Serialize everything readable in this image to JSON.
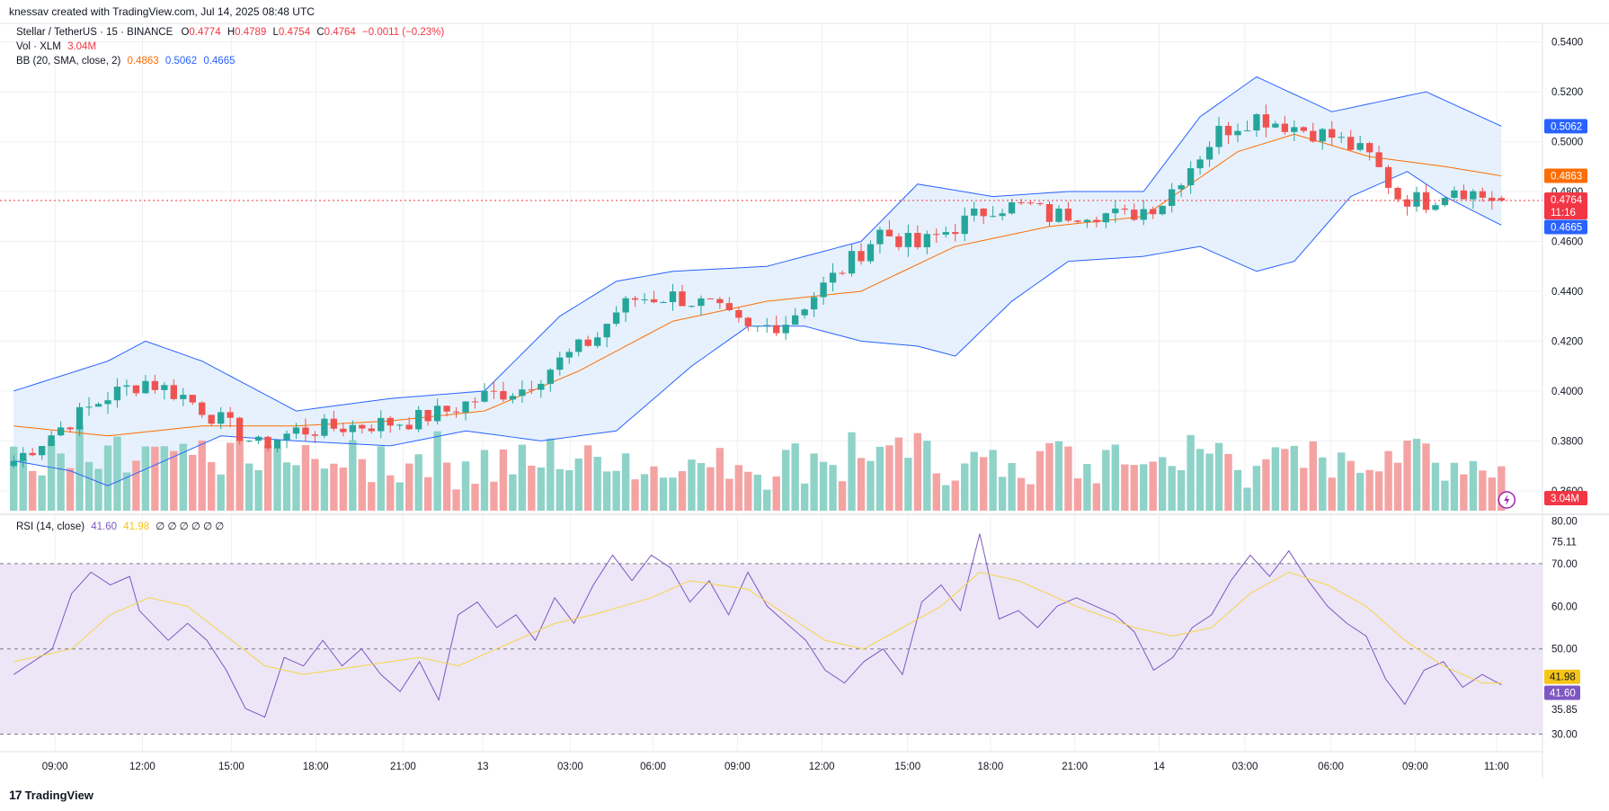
{
  "attribution": "knessav created with TradingView.com, Jul 14, 2025 08:48 UTC",
  "footer_brand": "TradingView",
  "legend": {
    "symbol": "Stellar / TetherUS · 15 · BINANCE",
    "o_label": "O",
    "o_value": "0.4774",
    "h_label": "H",
    "h_value": "0.4789",
    "l_label": "L",
    "l_value": "0.4754",
    "c_label": "C",
    "c_value": "0.4764",
    "change": "−0.0011 (−0.23%)",
    "vol_label": "Vol · XLM",
    "vol_value": "3.04M",
    "bb_label": "BB (20, SMA, close, 2)",
    "bb_basis": "0.4863",
    "bb_upper": "0.5062",
    "bb_lower": "0.4665",
    "rsi_label": "RSI (14, close)",
    "rsi_value": "41.60",
    "rsi_ma": "41.98",
    "rsi_extra": "∅ ∅ ∅ ∅ ∅ ∅"
  },
  "price_axis": {
    "ticks": [
      "0.5400",
      "0.5200",
      "0.5000",
      "0.4800",
      "0.4600",
      "0.4400",
      "0.4200",
      "0.4000",
      "0.3800",
      "0.3600"
    ],
    "tags": [
      {
        "text": "0.5062",
        "color": "#2962ff"
      },
      {
        "text": "0.4863",
        "color": "#ff6d00"
      },
      {
        "text": "0.4764",
        "color": "#f23645"
      },
      {
        "text": "11:16",
        "color": "#f23645"
      },
      {
        "text": "0.4665",
        "color": "#2962ff"
      },
      {
        "text": "3.04M",
        "color": "#f23645"
      }
    ]
  },
  "rsi_axis": {
    "ticks": [
      "80.00",
      "75.11",
      "70.00",
      "60.00",
      "50.00",
      "40.00",
      "35.85",
      "30.00"
    ],
    "tags": [
      {
        "text": "41.98",
        "color": "#f5c518"
      },
      {
        "text": "41.60",
        "color": "#7e57c2"
      }
    ]
  },
  "time_axis": [
    "09:00",
    "12:00",
    "15:00",
    "18:00",
    "21:00",
    "13",
    "03:00",
    "06:00",
    "09:00",
    "12:00",
    "15:00",
    "18:00",
    "21:00",
    "14",
    "03:00",
    "06:00",
    "09:00",
    "11:00"
  ],
  "colors": {
    "up": "#26a69a",
    "down": "#ef5350",
    "vol_up": "#8fd2c8",
    "vol_down": "#f4a3a3",
    "bb_basis": "#ff6d00",
    "bb_band": "#2962ff",
    "bb_fill": "#e3effd",
    "rsi_line": "#7e57c2",
    "rsi_ma": "#f5d547",
    "rsi_fill": "#ede6f7",
    "grid": "#eef0f3"
  },
  "chart_data": {
    "type": "candlestick",
    "symbol": "Stellar / TetherUS",
    "interval": "15",
    "exchange": "BINANCE",
    "ylim": [
      0.352,
      0.546
    ],
    "last": {
      "open": 0.4774,
      "high": 0.4789,
      "low": 0.4754,
      "close": 0.4764
    },
    "close_path": [
      [
        0,
        0.372
      ],
      [
        6,
        0.388
      ],
      [
        10,
        0.398
      ],
      [
        14,
        0.404
      ],
      [
        18,
        0.398
      ],
      [
        22,
        0.388
      ],
      [
        26,
        0.378
      ],
      [
        30,
        0.384
      ],
      [
        36,
        0.386
      ],
      [
        42,
        0.388
      ],
      [
        46,
        0.392
      ],
      [
        50,
        0.398
      ],
      [
        54,
        0.401
      ],
      [
        58,
        0.412
      ],
      [
        62,
        0.422
      ],
      [
        64,
        0.432
      ],
      [
        66,
        0.437
      ],
      [
        70,
        0.438
      ],
      [
        74,
        0.434
      ],
      [
        78,
        0.424
      ],
      [
        82,
        0.428
      ],
      [
        86,
        0.442
      ],
      [
        90,
        0.456
      ],
      [
        92,
        0.464
      ],
      [
        96,
        0.458
      ],
      [
        100,
        0.466
      ],
      [
        104,
        0.474
      ],
      [
        108,
        0.474
      ],
      [
        110,
        0.47
      ],
      [
        114,
        0.472
      ],
      [
        118,
        0.47
      ],
      [
        122,
        0.476
      ],
      [
        124,
        0.486
      ],
      [
        128,
        0.504
      ],
      [
        132,
        0.51
      ],
      [
        136,
        0.506
      ],
      [
        140,
        0.502
      ],
      [
        144,
        0.494
      ],
      [
        147,
        0.478
      ],
      [
        150,
        0.476
      ],
      [
        153,
        0.482
      ],
      [
        156,
        0.478
      ],
      [
        158,
        0.4764
      ]
    ],
    "volume_axis_label": "3.04M",
    "bb_basis_path": [
      [
        0,
        0.386
      ],
      [
        10,
        0.382
      ],
      [
        20,
        0.386
      ],
      [
        30,
        0.386
      ],
      [
        40,
        0.388
      ],
      [
        50,
        0.392
      ],
      [
        60,
        0.408
      ],
      [
        70,
        0.428
      ],
      [
        80,
        0.436
      ],
      [
        90,
        0.44
      ],
      [
        100,
        0.458
      ],
      [
        110,
        0.466
      ],
      [
        120,
        0.47
      ],
      [
        130,
        0.496
      ],
      [
        136,
        0.503
      ],
      [
        144,
        0.494
      ],
      [
        152,
        0.49
      ],
      [
        158,
        0.4863
      ]
    ],
    "bb_upper_path": [
      [
        0,
        0.4
      ],
      [
        10,
        0.412
      ],
      [
        14,
        0.42
      ],
      [
        20,
        0.412
      ],
      [
        30,
        0.392
      ],
      [
        40,
        0.397
      ],
      [
        50,
        0.4
      ],
      [
        58,
        0.43
      ],
      [
        64,
        0.444
      ],
      [
        70,
        0.448
      ],
      [
        80,
        0.45
      ],
      [
        90,
        0.46
      ],
      [
        96,
        0.483
      ],
      [
        104,
        0.478
      ],
      [
        112,
        0.48
      ],
      [
        120,
        0.48
      ],
      [
        126,
        0.51
      ],
      [
        132,
        0.526
      ],
      [
        140,
        0.512
      ],
      [
        150,
        0.52
      ],
      [
        158,
        0.5062
      ]
    ],
    "bb_lower_path": [
      [
        0,
        0.372
      ],
      [
        6,
        0.368
      ],
      [
        10,
        0.362
      ],
      [
        16,
        0.372
      ],
      [
        22,
        0.382
      ],
      [
        30,
        0.38
      ],
      [
        40,
        0.378
      ],
      [
        48,
        0.384
      ],
      [
        56,
        0.38
      ],
      [
        64,
        0.384
      ],
      [
        72,
        0.41
      ],
      [
        78,
        0.426
      ],
      [
        84,
        0.426
      ],
      [
        90,
        0.42
      ],
      [
        96,
        0.418
      ],
      [
        100,
        0.414
      ],
      [
        106,
        0.436
      ],
      [
        112,
        0.452
      ],
      [
        120,
        0.454
      ],
      [
        126,
        0.458
      ],
      [
        132,
        0.448
      ],
      [
        136,
        0.452
      ],
      [
        142,
        0.478
      ],
      [
        148,
        0.488
      ],
      [
        152,
        0.478
      ],
      [
        158,
        0.4665
      ]
    ],
    "rsi": {
      "ylim": [
        28,
        82
      ],
      "bands": [
        30,
        50,
        70
      ],
      "value": 41.6,
      "ma": 41.98,
      "high_tick": 75.11,
      "low_tick": 35.85,
      "line_path": [
        [
          0,
          44
        ],
        [
          4,
          50
        ],
        [
          6,
          63
        ],
        [
          8,
          68
        ],
        [
          10,
          65
        ],
        [
          12,
          67
        ],
        [
          13,
          59
        ],
        [
          16,
          52
        ],
        [
          18,
          56
        ],
        [
          20,
          52
        ],
        [
          22,
          45
        ],
        [
          24,
          36
        ],
        [
          26,
          34
        ],
        [
          28,
          48
        ],
        [
          30,
          46
        ],
        [
          32,
          52
        ],
        [
          34,
          46
        ],
        [
          36,
          50
        ],
        [
          38,
          44
        ],
        [
          40,
          40
        ],
        [
          42,
          47
        ],
        [
          44,
          38
        ],
        [
          46,
          58
        ],
        [
          48,
          61
        ],
        [
          50,
          55
        ],
        [
          52,
          58
        ],
        [
          54,
          52
        ],
        [
          56,
          62
        ],
        [
          58,
          56
        ],
        [
          60,
          65
        ],
        [
          62,
          72
        ],
        [
          64,
          66
        ],
        [
          66,
          72
        ],
        [
          68,
          69
        ],
        [
          70,
          61
        ],
        [
          72,
          66
        ],
        [
          74,
          58
        ],
        [
          76,
          68
        ],
        [
          78,
          60
        ],
        [
          80,
          56
        ],
        [
          82,
          52
        ],
        [
          84,
          45
        ],
        [
          86,
          42
        ],
        [
          88,
          47
        ],
        [
          90,
          50
        ],
        [
          92,
          44
        ],
        [
          94,
          61
        ],
        [
          96,
          65
        ],
        [
          98,
          59
        ],
        [
          100,
          77
        ],
        [
          102,
          57
        ],
        [
          104,
          59
        ],
        [
          106,
          55
        ],
        [
          108,
          60
        ],
        [
          110,
          62
        ],
        [
          112,
          60
        ],
        [
          114,
          58
        ],
        [
          116,
          54
        ],
        [
          118,
          45
        ],
        [
          120,
          48
        ],
        [
          122,
          55
        ],
        [
          124,
          58
        ],
        [
          126,
          66
        ],
        [
          128,
          72
        ],
        [
          130,
          67
        ],
        [
          132,
          73
        ],
        [
          134,
          66
        ],
        [
          136,
          60
        ],
        [
          138,
          56
        ],
        [
          140,
          53
        ],
        [
          142,
          43
        ],
        [
          144,
          37
        ],
        [
          146,
          45
        ],
        [
          148,
          47
        ],
        [
          150,
          41
        ],
        [
          152,
          44
        ],
        [
          154,
          41.6
        ]
      ],
      "ma_path": [
        [
          0,
          47
        ],
        [
          6,
          50
        ],
        [
          10,
          58
        ],
        [
          14,
          62
        ],
        [
          18,
          60
        ],
        [
          22,
          53
        ],
        [
          26,
          46
        ],
        [
          30,
          44
        ],
        [
          36,
          46
        ],
        [
          42,
          48
        ],
        [
          46,
          46
        ],
        [
          50,
          50
        ],
        [
          56,
          56
        ],
        [
          60,
          58
        ],
        [
          66,
          62
        ],
        [
          70,
          66
        ],
        [
          76,
          64
        ],
        [
          80,
          58
        ],
        [
          84,
          52
        ],
        [
          88,
          50
        ],
        [
          92,
          55
        ],
        [
          96,
          60
        ],
        [
          100,
          68
        ],
        [
          104,
          66
        ],
        [
          110,
          60
        ],
        [
          116,
          55
        ],
        [
          120,
          53
        ],
        [
          124,
          55
        ],
        [
          128,
          63
        ],
        [
          132,
          68
        ],
        [
          136,
          65
        ],
        [
          140,
          60
        ],
        [
          144,
          52
        ],
        [
          148,
          46
        ],
        [
          152,
          42
        ],
        [
          154,
          41.98
        ]
      ]
    },
    "candles_total": 160
  }
}
